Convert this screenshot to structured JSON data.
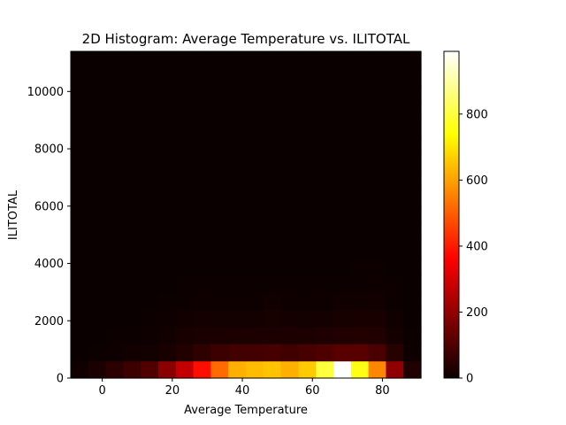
{
  "chart_data": {
    "type": "heatmap",
    "title": "2D Histogram: Average Temperature vs. ILITOTAL",
    "xlabel": "Average Temperature",
    "ylabel": "ILITOTAL",
    "xlim": [
      -9,
      91
    ],
    "ylim": [
      0,
      11400
    ],
    "x_ticks": [
      0,
      20,
      40,
      60,
      80
    ],
    "y_ticks": [
      0,
      2000,
      4000,
      6000,
      8000,
      10000
    ],
    "x_bin_edges": [
      -9,
      -4,
      1,
      6,
      11,
      16,
      21,
      26,
      31,
      36,
      41,
      46,
      51,
      56,
      61,
      66,
      71,
      76,
      81,
      86,
      91
    ],
    "y_bin_edges": [
      0,
      600,
      1200,
      1800,
      2400,
      3000,
      3600,
      4200,
      4800,
      5400,
      6000,
      6600,
      7200,
      7800,
      8400,
      9000,
      9600,
      10200,
      10800,
      11400
    ],
    "counts": [
      [
        8,
        22,
        48,
        70,
        100,
        180,
        260,
        380,
        520,
        620,
        640,
        650,
        620,
        660,
        800,
        990,
        760,
        560,
        190,
        30
      ],
      [
        1,
        3,
        6,
        10,
        12,
        20,
        35,
        50,
        70,
        80,
        80,
        85,
        75,
        85,
        95,
        110,
        110,
        90,
        40,
        5
      ],
      [
        0,
        1,
        2,
        3,
        5,
        10,
        20,
        22,
        22,
        25,
        25,
        25,
        25,
        25,
        28,
        30,
        35,
        30,
        15,
        2
      ],
      [
        0,
        0,
        1,
        1,
        2,
        5,
        10,
        13,
        12,
        12,
        12,
        18,
        15,
        12,
        14,
        16,
        20,
        20,
        8,
        1
      ],
      [
        0,
        0,
        0,
        1,
        1,
        2,
        4,
        6,
        5,
        5,
        5,
        7,
        6,
        5,
        6,
        7,
        9,
        10,
        4,
        0
      ],
      [
        0,
        0,
        0,
        0,
        1,
        1,
        2,
        3,
        3,
        3,
        3,
        4,
        3,
        3,
        3,
        3,
        4,
        5,
        2,
        0
      ],
      [
        0,
        0,
        0,
        0,
        0,
        1,
        1,
        1,
        1,
        1,
        1,
        1,
        1,
        1,
        1,
        1,
        2,
        2,
        1,
        0
      ],
      [
        0,
        0,
        0,
        0,
        0,
        0,
        1,
        1,
        1,
        1,
        1,
        1,
        1,
        1,
        1,
        1,
        1,
        1,
        0,
        0
      ],
      [
        0,
        0,
        0,
        0,
        0,
        0,
        0,
        0,
        0,
        0,
        0,
        0,
        0,
        0,
        0,
        0,
        0,
        0,
        0,
        0
      ],
      [
        0,
        0,
        0,
        0,
        0,
        0,
        0,
        0,
        0,
        0,
        0,
        0,
        0,
        0,
        0,
        0,
        0,
        0,
        0,
        0
      ],
      [
        0,
        0,
        0,
        0,
        0,
        0,
        0,
        0,
        0,
        0,
        0,
        0,
        0,
        0,
        0,
        0,
        0,
        0,
        0,
        0
      ],
      [
        0,
        0,
        0,
        0,
        0,
        0,
        0,
        0,
        0,
        0,
        0,
        0,
        0,
        0,
        0,
        0,
        0,
        0,
        0,
        0
      ],
      [
        0,
        0,
        0,
        0,
        0,
        0,
        0,
        0,
        0,
        0,
        0,
        0,
        0,
        0,
        0,
        0,
        0,
        0,
        0,
        0
      ],
      [
        0,
        0,
        0,
        0,
        0,
        0,
        0,
        0,
        0,
        0,
        0,
        0,
        0,
        0,
        0,
        0,
        0,
        0,
        0,
        0
      ],
      [
        0,
        0,
        0,
        0,
        0,
        0,
        0,
        0,
        0,
        0,
        0,
        0,
        0,
        0,
        0,
        0,
        0,
        0,
        0,
        0
      ],
      [
        0,
        0,
        0,
        0,
        0,
        0,
        0,
        0,
        0,
        0,
        0,
        0,
        0,
        0,
        0,
        0,
        0,
        0,
        0,
        0
      ],
      [
        0,
        0,
        0,
        0,
        0,
        0,
        0,
        0,
        0,
        0,
        0,
        0,
        0,
        0,
        0,
        0,
        0,
        0,
        0,
        0
      ],
      [
        0,
        0,
        0,
        0,
        0,
        0,
        0,
        0,
        0,
        0,
        0,
        0,
        0,
        0,
        0,
        0,
        0,
        0,
        0,
        0
      ],
      [
        0,
        0,
        0,
        0,
        0,
        0,
        0,
        0,
        0,
        0,
        0,
        0,
        0,
        0,
        0,
        0,
        0,
        0,
        0,
        1
      ]
    ],
    "colormap": "hot",
    "colorbar": {
      "range": [
        0,
        990
      ],
      "ticks": [
        0,
        200,
        400,
        600,
        800
      ]
    },
    "grid": false,
    "legend": "none"
  }
}
